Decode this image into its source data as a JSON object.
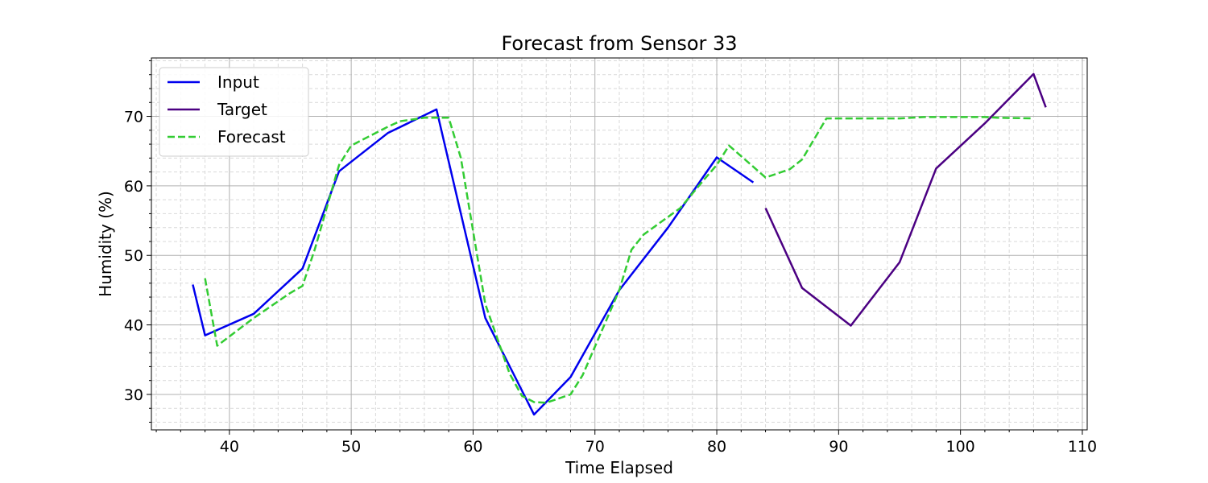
{
  "chart_data": {
    "type": "line",
    "title": "Forecast from Sensor 33",
    "xlabel": "Time Elapsed",
    "ylabel": "Humidity (%)",
    "xlim": [
      33.6,
      110.4
    ],
    "ylim": [
      24.9,
      78.4
    ],
    "x_ticks": [
      40,
      50,
      60,
      70,
      80,
      90,
      100,
      110
    ],
    "y_ticks": [
      30,
      40,
      50,
      60,
      70
    ],
    "x_minor_step": 2,
    "y_minor_step": 2,
    "grid": true,
    "legend_position": "upper left",
    "series": [
      {
        "name": "Input",
        "color": "#0000ee",
        "dash": "solid",
        "points": [
          [
            37,
            45.8
          ],
          [
            38,
            38.5
          ],
          [
            42,
            41.6
          ],
          [
            46,
            48.1
          ],
          [
            49,
            62.1
          ],
          [
            53,
            67.6
          ],
          [
            57,
            71.0
          ],
          [
            61,
            41.0
          ],
          [
            65,
            27.1
          ],
          [
            68,
            32.5
          ],
          [
            72,
            45.0
          ],
          [
            76,
            54.0
          ],
          [
            80,
            64.1
          ],
          [
            83,
            60.5
          ]
        ]
      },
      {
        "name": "Target",
        "color": "#4b0082",
        "dash": "solid",
        "points": [
          [
            84,
            56.8
          ],
          [
            87,
            45.3
          ],
          [
            91,
            39.9
          ],
          [
            95,
            49.0
          ],
          [
            98,
            62.5
          ],
          [
            102,
            69.0
          ],
          [
            106,
            76.1
          ],
          [
            107,
            71.3
          ]
        ]
      },
      {
        "name": "Forecast",
        "color": "#33cc33",
        "dash": "dashed",
        "points": [
          [
            38,
            46.7
          ],
          [
            39,
            37.0
          ],
          [
            42,
            41.0
          ],
          [
            45,
            44.6
          ],
          [
            46,
            45.6
          ],
          [
            47,
            50.8
          ],
          [
            49,
            63.0
          ],
          [
            50,
            65.8
          ],
          [
            53,
            68.5
          ],
          [
            54,
            69.3
          ],
          [
            56,
            69.8
          ],
          [
            58,
            69.8
          ],
          [
            59,
            64.0
          ],
          [
            61,
            43.0
          ],
          [
            63,
            33.0
          ],
          [
            64,
            29.8
          ],
          [
            65,
            28.9
          ],
          [
            66,
            28.8
          ],
          [
            68,
            30.0
          ],
          [
            69,
            32.8
          ],
          [
            72,
            45.0
          ],
          [
            73,
            50.8
          ],
          [
            74,
            53.0
          ],
          [
            77,
            56.8
          ],
          [
            79,
            61.0
          ],
          [
            80,
            63.0
          ],
          [
            81,
            65.8
          ],
          [
            84,
            61.2
          ],
          [
            86,
            62.4
          ],
          [
            87,
            63.8
          ],
          [
            89,
            69.7
          ],
          [
            95,
            69.7
          ],
          [
            97,
            69.9
          ],
          [
            100,
            69.9
          ],
          [
            102,
            69.9
          ],
          [
            103,
            69.8
          ],
          [
            106,
            69.7
          ]
        ]
      }
    ]
  }
}
